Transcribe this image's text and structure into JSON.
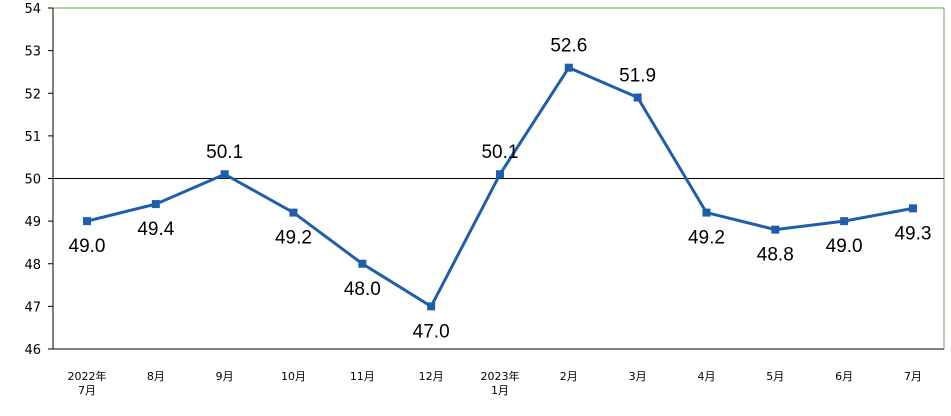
{
  "chart_data": {
    "type": "line",
    "categories": [
      [
        "2022年",
        "7月"
      ],
      [
        "8月"
      ],
      [
        "9月"
      ],
      [
        "10月"
      ],
      [
        "11月"
      ],
      [
        "12月"
      ],
      [
        "2023年",
        "1月"
      ],
      [
        "2月"
      ],
      [
        "3月"
      ],
      [
        "4月"
      ],
      [
        "5月"
      ],
      [
        "6月"
      ],
      [
        "7月"
      ]
    ],
    "series": [
      {
        "values": [
          49.0,
          49.4,
          50.1,
          49.2,
          48.0,
          47.0,
          50.1,
          52.6,
          51.9,
          49.2,
          48.8,
          49.0,
          49.3
        ],
        "labels": [
          "49.0",
          "49.4",
          "50.1",
          "49.2",
          "48.0",
          "47.0",
          "50.1",
          "52.6",
          "51.9",
          "49.2",
          "48.8",
          "49.0",
          "49.3"
        ],
        "label_position": [
          "below",
          "below",
          "above",
          "below",
          "below",
          "below",
          "above",
          "above",
          "above",
          "below",
          "below",
          "below",
          "below"
        ],
        "color": "#1f5faa"
      }
    ],
    "ylim": [
      46,
      54
    ],
    "yticks": [
      "46",
      "47",
      "48",
      "49",
      "50",
      "51",
      "52",
      "53",
      "54"
    ],
    "reference_line": 50,
    "grid": false,
    "border_color": "#6aa84f"
  }
}
